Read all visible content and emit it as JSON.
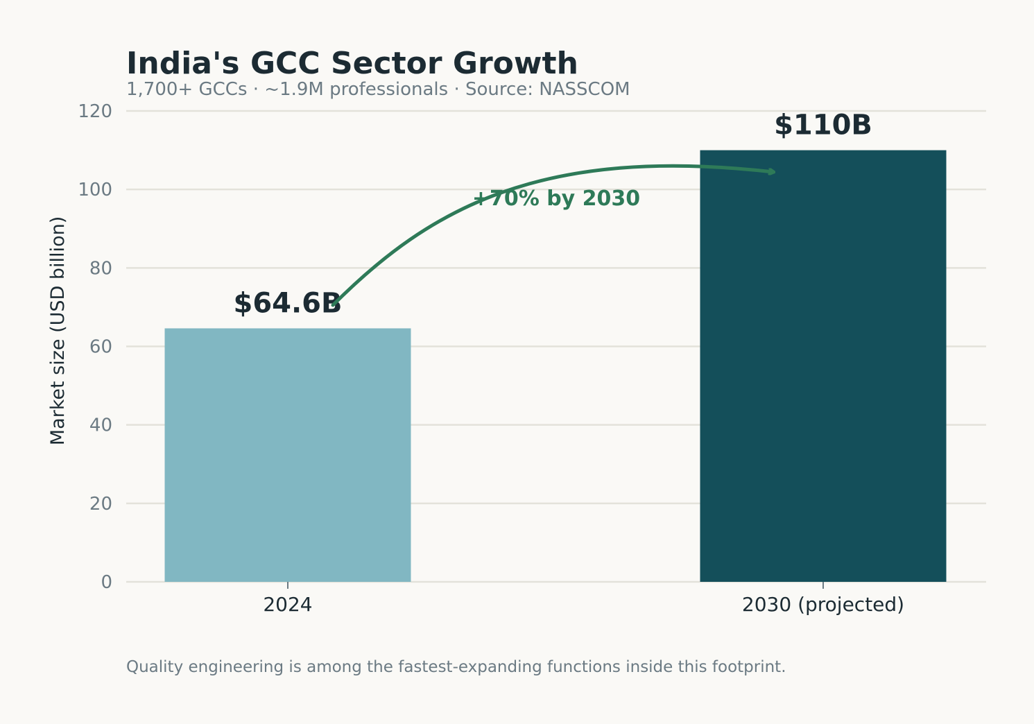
{
  "chart_data": {
    "type": "bar",
    "title": "India's GCC Sector Growth",
    "subtitle": "1,700+ GCCs · ~1.9M professionals · Source: NASSCOM",
    "xlabel": "",
    "ylabel": "Market size (USD billion)",
    "ylim": [
      0,
      120
    ],
    "yticks": [
      0,
      20,
      40,
      60,
      80,
      100,
      120
    ],
    "categories": [
      "2024",
      "2030 (projected)"
    ],
    "values": [
      64.6,
      110
    ],
    "data_labels": [
      "$64.6B",
      "$110B"
    ],
    "bar_colors": [
      "#81b7c2",
      "#144f5a"
    ],
    "grid": true,
    "annotation": {
      "text": "+70% by 2030",
      "color": "#2e7a58"
    },
    "footnote": "Quality engineering is among the fastest-expanding functions inside this footprint."
  }
}
